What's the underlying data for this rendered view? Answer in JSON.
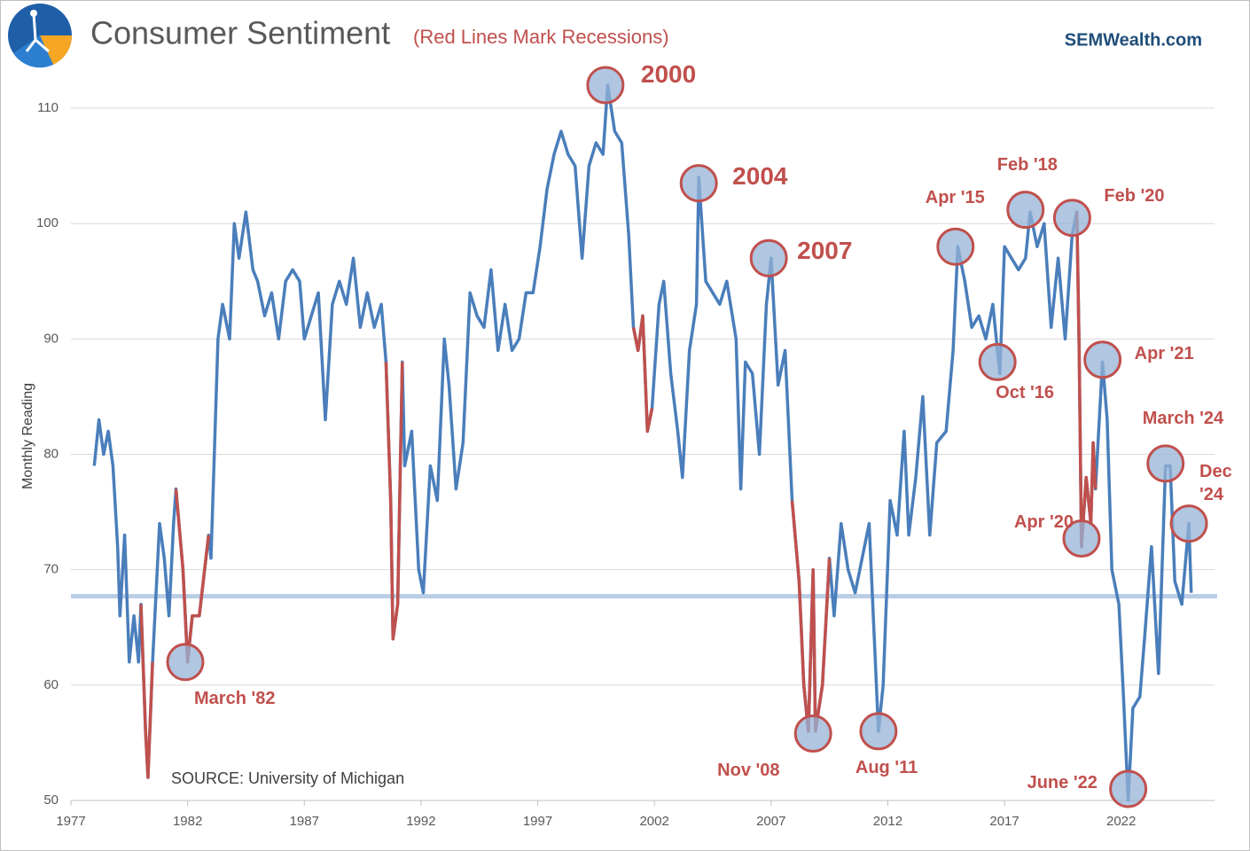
{
  "chart_data": {
    "type": "line",
    "title": "Consumer Sentiment",
    "subtitle": "(Red Lines Mark Recessions)",
    "brand": "SEMWealth.com",
    "y_label": "Monthly Reading",
    "source": "SOURCE: University of Michigan",
    "x": [
      1978.0,
      1978.2,
      1978.4,
      1978.6,
      1978.8,
      1979.0,
      1979.1,
      1979.3,
      1979.5,
      1979.7,
      1979.9,
      1980.0,
      1980.2,
      1980.3,
      1980.5,
      1980.8,
      1981.0,
      1981.2,
      1981.4,
      1981.5,
      1981.8,
      1982.0,
      1982.2,
      1982.5,
      1982.9,
      1983.0,
      1983.3,
      1983.5,
      1983.8,
      1984.0,
      1984.2,
      1984.5,
      1984.8,
      1985.0,
      1985.3,
      1985.6,
      1985.9,
      1986.2,
      1986.5,
      1986.8,
      1987.0,
      1987.3,
      1987.6,
      1987.9,
      1988.2,
      1988.5,
      1988.8,
      1989.1,
      1989.4,
      1989.7,
      1990.0,
      1990.3,
      1990.5,
      1990.7,
      1990.8,
      1991.0,
      1991.2,
      1991.3,
      1991.6,
      1991.9,
      1992.1,
      1992.4,
      1992.7,
      1993.0,
      1993.2,
      1993.5,
      1993.8,
      1994.1,
      1994.4,
      1994.7,
      1995.0,
      1995.3,
      1995.6,
      1995.9,
      1996.2,
      1996.5,
      1996.8,
      1997.1,
      1997.4,
      1997.7,
      1998.0,
      1998.3,
      1998.6,
      1998.9,
      1999.2,
      1999.5,
      1999.8,
      2000.0,
      2000.3,
      2000.6,
      2000.9,
      2001.1,
      2001.3,
      2001.5,
      2001.7,
      2001.9,
      2002.2,
      2002.4,
      2002.7,
      2003.0,
      2003.2,
      2003.5,
      2003.8,
      2003.9,
      2004.2,
      2004.5,
      2004.8,
      2005.1,
      2005.5,
      2005.7,
      2005.9,
      2006.2,
      2006.5,
      2006.8,
      2007.0,
      2007.3,
      2007.6,
      2007.9,
      2008.2,
      2008.4,
      2008.6,
      2008.8,
      2008.9,
      2009.2,
      2009.5,
      2009.7,
      2010.0,
      2010.3,
      2010.6,
      2010.9,
      2011.2,
      2011.6,
      2011.8,
      2012.1,
      2012.4,
      2012.7,
      2012.9,
      2013.2,
      2013.5,
      2013.8,
      2014.1,
      2014.5,
      2014.8,
      2015.0,
      2015.3,
      2015.6,
      2015.9,
      2016.2,
      2016.5,
      2016.8,
      2017.0,
      2017.3,
      2017.6,
      2017.9,
      2018.1,
      2018.4,
      2018.7,
      2019.0,
      2019.3,
      2019.6,
      2019.9,
      2020.1,
      2020.2,
      2020.3,
      2020.5,
      2020.7,
      2020.8,
      2020.9,
      2021.2,
      2021.4,
      2021.6,
      2021.9,
      2022.1,
      2022.3,
      2022.5,
      2022.8,
      2023.0,
      2023.3,
      2023.6,
      2023.9,
      2024.1,
      2024.3,
      2024.6,
      2024.9,
      2025.0
    ],
    "series": [
      {
        "color": "#4a7ebb",
        "values": [
          79,
          83,
          80,
          82,
          79,
          72,
          66,
          73,
          62,
          66,
          62,
          67,
          56,
          52,
          62,
          74,
          71,
          66,
          74,
          77,
          70,
          62,
          66,
          66,
          73,
          71,
          90,
          93,
          90,
          100,
          97,
          101,
          96,
          95,
          92,
          94,
          90,
          95,
          96,
          95,
          90,
          92,
          94,
          83,
          93,
          95,
          93,
          97,
          91,
          94,
          91,
          93,
          88,
          76,
          64,
          67,
          88,
          79,
          82,
          70,
          68,
          79,
          76,
          90,
          86,
          77,
          81,
          94,
          92,
          91,
          96,
          89,
          93,
          89,
          90,
          94,
          94,
          98,
          103,
          106,
          108,
          106,
          105,
          97,
          105,
          107,
          106,
          112,
          108,
          107,
          99,
          91,
          89,
          92,
          82,
          84,
          93,
          95,
          87,
          82,
          78,
          89,
          93,
          104,
          95,
          94,
          93,
          95,
          90,
          77,
          88,
          87,
          80,
          93,
          97,
          86,
          89,
          76,
          69,
          60,
          56,
          70,
          56,
          60,
          71,
          66,
          74,
          70,
          68,
          71,
          74,
          56,
          60,
          76,
          73,
          82,
          73,
          78,
          85,
          73,
          81,
          82,
          89,
          98,
          95,
          91,
          92,
          90,
          93,
          87,
          98,
          97,
          96,
          97,
          101,
          98,
          100,
          91,
          97,
          90,
          99,
          101,
          89,
          72,
          78,
          74,
          81,
          77,
          88,
          83,
          70,
          67,
          59,
          50,
          58,
          59,
          64,
          72,
          61,
          79,
          79,
          69,
          67,
          74,
          68
        ]
      }
    ],
    "recession_color": "#c0504d",
    "recessions": [
      [
        1980.0,
        1980.5
      ],
      [
        1981.5,
        1982.9
      ],
      [
        1990.5,
        1991.2
      ],
      [
        2001.1,
        2001.9
      ],
      [
        2007.9,
        2009.5
      ],
      [
        2020.1,
        2020.9
      ]
    ],
    "reference_line": 67.7,
    "reference_color": "#b9cde5",
    "xlim": [
      1977,
      2026
    ],
    "ylim": [
      50,
      113
    ],
    "xticks": [
      1977,
      1982,
      1987,
      1992,
      1997,
      2002,
      2007,
      2012,
      2017,
      2022
    ],
    "yticks": [
      50,
      60,
      70,
      80,
      90,
      100,
      110
    ],
    "annotations": [
      {
        "label": "March '82",
        "x": 1981.9,
        "y": 62
      },
      {
        "label": "2000",
        "x": 1999.9,
        "y": 112
      },
      {
        "label": "2004",
        "x": 2003.9,
        "y": 103.5
      },
      {
        "label": "2007",
        "x": 2006.9,
        "y": 97
      },
      {
        "label": "Nov '08",
        "x": 2008.8,
        "y": 55.8
      },
      {
        "label": "Aug '11",
        "x": 2011.6,
        "y": 56
      },
      {
        "label": "Apr '15",
        "x": 2014.9,
        "y": 98
      },
      {
        "label": "Oct '16",
        "x": 2016.7,
        "y": 88
      },
      {
        "label": "Feb '18",
        "x": 2017.9,
        "y": 101.2
      },
      {
        "label": "Feb '20",
        "x": 2019.9,
        "y": 100.5
      },
      {
        "label": "Apr '20",
        "x": 2020.3,
        "y": 72.7
      },
      {
        "label": "Apr '21",
        "x": 2021.2,
        "y": 88.2
      },
      {
        "label": "June '22",
        "x": 2022.3,
        "y": 51
      },
      {
        "label": "March '24",
        "x": 2023.9,
        "y": 79.2
      },
      {
        "label": "Dec '24",
        "x": 2024.9,
        "y": 74
      }
    ]
  }
}
